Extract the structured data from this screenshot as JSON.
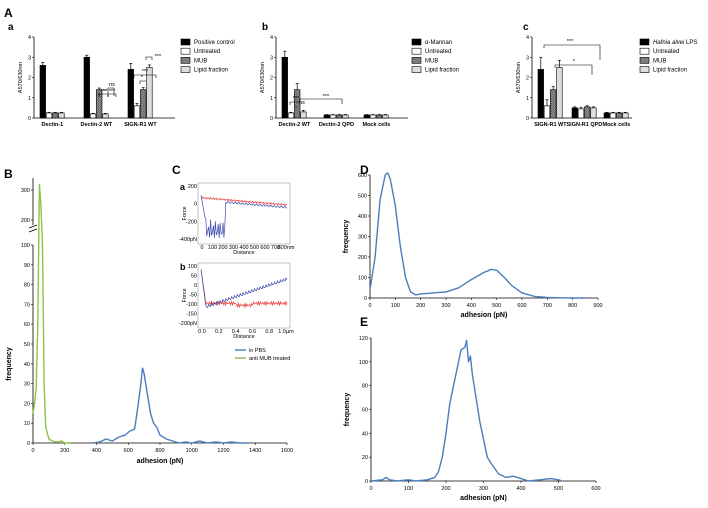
{
  "figure_labels": {
    "A": "A",
    "B": "B",
    "C": "C",
    "D": "D",
    "E": "E"
  },
  "chart_data": [
    {
      "panel": "a",
      "type": "bar",
      "ylabel": "A570/630nm",
      "ylim": [
        0,
        4
      ],
      "yticks": [
        "0",
        "1",
        "2",
        "3",
        "4"
      ],
      "categories": [
        "Dectin-1",
        "Dectin-2 WT",
        "SIGN-R1 WT"
      ],
      "series": [
        {
          "name": "Positive control",
          "fill": "#000000",
          "values": [
            2.6,
            3.0,
            2.4
          ],
          "errors": [
            0.15,
            0.1,
            0.3
          ]
        },
        {
          "name": "Untreated",
          "fill": "#ffffff",
          "values": [
            0.25,
            0.2,
            0.6
          ],
          "errors": [
            0.03,
            0.03,
            0.12
          ]
        },
        {
          "name": "MUB",
          "fill": "#888888",
          "values": [
            0.25,
            1.4,
            1.4
          ],
          "errors": [
            0.03,
            0.08,
            0.1
          ]
        },
        {
          "name": "Lipid fraction",
          "fill": "#dddddd",
          "values": [
            0.25,
            0.2,
            2.5
          ],
          "errors": [
            0.03,
            0.03,
            0.12
          ]
        }
      ],
      "annotations": [
        "***",
        "***",
        "***",
        "ns",
        "***",
        "*",
        "***"
      ]
    },
    {
      "panel": "b",
      "type": "bar",
      "ylabel": "A570/630nm",
      "ylim": [
        0,
        4
      ],
      "yticks": [
        "0",
        "1",
        "2",
        "3",
        "4"
      ],
      "categories": [
        "Dectin-2 WT",
        "Dectin-2 QPD",
        "Mock cells"
      ],
      "series": [
        {
          "name": "α-Mannan",
          "fill": "#000000",
          "values": [
            3.0,
            0.15,
            0.15
          ],
          "errors": [
            0.3,
            0.02,
            0.02
          ]
        },
        {
          "name": "Untreated",
          "fill": "#ffffff",
          "values": [
            0.25,
            0.15,
            0.15
          ],
          "errors": [
            0.03,
            0.02,
            0.02
          ]
        },
        {
          "name": "MUB",
          "fill": "#888888",
          "values": [
            1.4,
            0.15,
            0.15
          ],
          "errors": [
            0.3,
            0.02,
            0.02
          ]
        },
        {
          "name": "Lipid fraction",
          "fill": "#dddddd",
          "values": [
            0.3,
            0.15,
            0.15
          ],
          "errors": [
            0.08,
            0.02,
            0.02
          ]
        }
      ],
      "annotations": [
        "***",
        "ns",
        "***"
      ]
    },
    {
      "panel": "c",
      "type": "bar",
      "ylabel": "A570/630nm",
      "ylim": [
        0,
        4
      ],
      "yticks": [
        "0",
        "1",
        "2",
        "3",
        "4"
      ],
      "categories": [
        "SIGN-R1 WT",
        "SIGN-R1 QPD",
        "Mock cells"
      ],
      "series": [
        {
          "name": "Hafnia alvei LPS",
          "fill": "#000000",
          "values": [
            2.4,
            0.5,
            0.25
          ],
          "errors": [
            0.6,
            0.05,
            0.03
          ]
        },
        {
          "name": "Untreated",
          "fill": "#ffffff",
          "values": [
            0.6,
            0.45,
            0.25
          ],
          "errors": [
            0.3,
            0.08,
            0.03
          ]
        },
        {
          "name": "MUB",
          "fill": "#888888",
          "values": [
            1.4,
            0.55,
            0.25
          ],
          "errors": [
            0.15,
            0.05,
            0.03
          ]
        },
        {
          "name": "Lipid fraction",
          "fill": "#dddddd",
          "values": [
            2.5,
            0.5,
            0.25
          ],
          "errors": [
            0.35,
            0.05,
            0.03
          ]
        }
      ],
      "annotations": [
        "***",
        "*"
      ]
    },
    {
      "panel": "B",
      "type": "line",
      "xlabel": "adhesion (pN)",
      "ylabel": "frequency",
      "xlim": [
        0,
        1600
      ],
      "xticks": [
        "0",
        "200",
        "400",
        "600",
        "800",
        "1000",
        "1200",
        "1400",
        "1600"
      ],
      "yticks_lower": [
        "0",
        "10",
        "20",
        "30",
        "40",
        "50",
        "60",
        "70",
        "80",
        "90",
        "100"
      ],
      "yticks_upper": [
        "200",
        "300"
      ],
      "series": [
        {
          "name": "in PBS",
          "color": "#4a7ebb",
          "x": [
            380,
            420,
            460,
            500,
            540,
            580,
            610,
            640,
            660,
            680,
            690,
            700,
            720,
            740,
            760,
            780,
            800,
            840,
            880,
            920,
            960,
            1000,
            1050,
            1100,
            1150,
            1200,
            1250,
            1300,
            1350
          ],
          "y": [
            0,
            0.5,
            2,
            1,
            3,
            4,
            6,
            7,
            18,
            30,
            38,
            35,
            25,
            15,
            10,
            8,
            4,
            2,
            1,
            0,
            0.5,
            0,
            1,
            0,
            0.5,
            0,
            0.5,
            0,
            0
          ]
        },
        {
          "name": "anti MUB treated",
          "color": "#8bc34a",
          "x": [
            0,
            10,
            20,
            30,
            40,
            50,
            60,
            70,
            80,
            100,
            120,
            150,
            180,
            200,
            240
          ],
          "y": [
            15,
            20,
            28,
            60,
            320,
            250,
            100,
            30,
            8,
            2,
            1,
            0.5,
            1,
            0,
            0
          ]
        }
      ]
    },
    {
      "panel": "C",
      "type": "line",
      "subpanels": [
        {
          "label": "a",
          "xlabel": "Distance",
          "ylabel": "Force",
          "xticks": [
            "0",
            "100",
            "200",
            "300",
            "400",
            "500",
            "600",
            "700",
            "800nm"
          ],
          "yticks": [
            "200",
            "0",
            "-200",
            "-400pN"
          ],
          "series": [
            {
              "name": "approach",
              "color": "#e53935"
            },
            {
              "name": "retract",
              "color": "#3949ab"
            }
          ]
        },
        {
          "label": "b",
          "xlabel": "Distance",
          "ylabel": "Force",
          "xticks": [
            "0.0",
            "0.2",
            "0.4",
            "0.6",
            "0.8",
            "1.0µm"
          ],
          "yticks": [
            "100",
            "50",
            "0",
            "-50",
            "-100",
            "-150",
            "-200pN"
          ],
          "series": [
            {
              "name": "approach",
              "color": "#e53935"
            },
            {
              "name": "retract",
              "color": "#3949ab"
            }
          ]
        }
      ]
    },
    {
      "panel": "D",
      "type": "line",
      "xlabel": "adhesion (pN)",
      "ylabel": "frequency",
      "xlim": [
        0,
        900
      ],
      "ylim": [
        0,
        600
      ],
      "xticks": [
        "0",
        "100",
        "200",
        "300",
        "400",
        "500",
        "600",
        "700",
        "800",
        "900"
      ],
      "yticks": [
        "0",
        "100",
        "200",
        "300",
        "400",
        "500",
        "600"
      ],
      "series": [
        {
          "name": "adhesion",
          "color": "#4a7ebb",
          "x": [
            0,
            20,
            40,
            60,
            70,
            80,
            100,
            120,
            140,
            160,
            180,
            200,
            250,
            300,
            350,
            400,
            450,
            480,
            500,
            530,
            560,
            600,
            650,
            700,
            750,
            800,
            850
          ],
          "y": [
            40,
            200,
            480,
            600,
            610,
            580,
            450,
            250,
            100,
            30,
            15,
            20,
            25,
            30,
            50,
            90,
            125,
            140,
            135,
            100,
            60,
            25,
            8,
            3,
            1,
            0,
            0
          ]
        }
      ]
    },
    {
      "panel": "E",
      "type": "line",
      "xlabel": "adhesion (pN)",
      "ylabel": "frequency",
      "xlim": [
        0,
        600
      ],
      "ylim": [
        0,
        120
      ],
      "xticks": [
        "0",
        "100",
        "200",
        "300",
        "400",
        "500",
        "600"
      ],
      "yticks": [
        "0",
        "20",
        "40",
        "60",
        "80",
        "100",
        "120"
      ],
      "series": [
        {
          "name": "adhesion",
          "color": "#4a7ebb",
          "x": [
            0,
            30,
            40,
            50,
            70,
            100,
            120,
            150,
            170,
            180,
            190,
            200,
            210,
            220,
            230,
            240,
            250,
            255,
            260,
            265,
            270,
            280,
            290,
            300,
            310,
            320,
            340,
            360,
            380,
            400,
            420,
            450,
            480,
            500,
            510
          ],
          "y": [
            0,
            1,
            3,
            1,
            0,
            1,
            0,
            1,
            3,
            8,
            20,
            40,
            65,
            80,
            95,
            110,
            112,
            118,
            100,
            105,
            90,
            70,
            50,
            35,
            20,
            15,
            6,
            3,
            4,
            2,
            0,
            1,
            2,
            1,
            0
          ]
        }
      ]
    }
  ]
}
